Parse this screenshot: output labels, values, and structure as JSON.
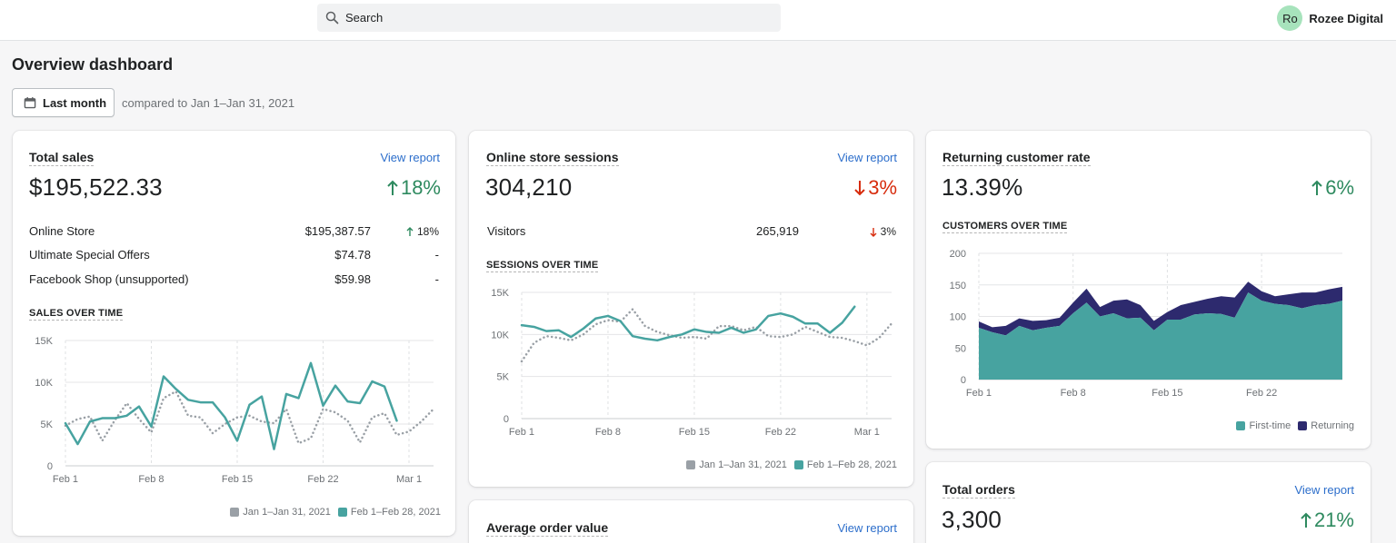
{
  "header": {
    "search_placeholder": "Search",
    "user_initials": "Ro",
    "user_name": "Rozee Digital"
  },
  "page": {
    "title": "Overview dashboard",
    "date_button": "Last month",
    "compare_text": "compared to Jan 1–Jan 31, 2021"
  },
  "colors": {
    "current": "#47a3a0",
    "previous": "#9aa0a6",
    "first_time": "#47a3a0",
    "returning": "#2d2a6e",
    "positive": "#2e8a5f",
    "negative": "#d72c0d"
  },
  "total_sales": {
    "title": "Total sales",
    "view_report": "View report",
    "value": "$195,522.33",
    "change": "18%",
    "direction": "up",
    "rows": [
      {
        "label": "Online Store",
        "value": "$195,387.57",
        "change": "18%",
        "direction": "up"
      },
      {
        "label": "Ultimate Special Offers",
        "value": "$74.78",
        "change": "-",
        "direction": "none"
      },
      {
        "label": "Facebook Shop (unsupported)",
        "value": "$59.98",
        "change": "-",
        "direction": "none"
      }
    ],
    "chart_label": "SALES OVER TIME",
    "legend": [
      "Jan 1–Jan 31, 2021",
      "Feb 1–Feb 28, 2021"
    ]
  },
  "sessions": {
    "title": "Online store sessions",
    "view_report": "View report",
    "value": "304,210",
    "change": "3%",
    "direction": "down",
    "rows": [
      {
        "label": "Visitors",
        "value": "265,919",
        "change": "3%",
        "direction": "down"
      }
    ],
    "chart_label": "SESSIONS OVER TIME",
    "legend": [
      "Jan 1–Jan 31, 2021",
      "Feb 1–Feb 28, 2021"
    ]
  },
  "returning": {
    "title": "Returning customer rate",
    "value": "13.39%",
    "change": "6%",
    "direction": "up",
    "chart_label": "CUSTOMERS OVER TIME",
    "legend": [
      "First-time",
      "Returning"
    ]
  },
  "aov": {
    "title": "Average order value",
    "view_report": "View report"
  },
  "orders": {
    "title": "Total orders",
    "view_report": "View report",
    "value": "3,300",
    "change": "21%",
    "direction": "up"
  },
  "chart_data": [
    {
      "id": "sales",
      "type": "line",
      "title": "SALES OVER TIME",
      "x_ticks": [
        "Feb 1",
        "Feb 8",
        "Feb 15",
        "Feb 22",
        "Mar 1"
      ],
      "y_ticks": [
        "0",
        "5K",
        "10K",
        "15K"
      ],
      "ylim": [
        0,
        15000
      ],
      "x_count": 31,
      "series": [
        {
          "name": "Jan 1–Jan 31, 2021",
          "style": "dotted",
          "values": [
            4800,
            5600,
            5900,
            3000,
            5400,
            7500,
            5600,
            4000,
            8100,
            8900,
            6000,
            5800,
            3900,
            5000,
            5800,
            6000,
            5300,
            5100,
            6800,
            2700,
            3300,
            6800,
            6400,
            5400,
            2800,
            5800,
            6300,
            3700,
            4100,
            5300,
            6800
          ]
        },
        {
          "name": "Feb 1–Feb 28, 2021",
          "style": "solid",
          "values": [
            5100,
            2600,
            5300,
            5700,
            5700,
            6000,
            7100,
            4700,
            10700,
            9200,
            7900,
            7600,
            7600,
            5800,
            3000,
            7300,
            8300,
            2000,
            8600,
            8100,
            12300,
            7200,
            9600,
            7700,
            7500,
            10100,
            9500,
            5400
          ]
        }
      ]
    },
    {
      "id": "sessions",
      "type": "line",
      "title": "SESSIONS OVER TIME",
      "x_ticks": [
        "Feb 1",
        "Feb 8",
        "Feb 15",
        "Feb 22",
        "Mar 1"
      ],
      "y_ticks": [
        "0",
        "5K",
        "10K",
        "15K"
      ],
      "ylim": [
        0,
        15000
      ],
      "x_count": 31,
      "series": [
        {
          "name": "Jan 1–Jan 31, 2021",
          "style": "dotted",
          "values": [
            6800,
            9000,
            9800,
            9600,
            9300,
            10000,
            11200,
            11700,
            11500,
            13000,
            11000,
            10300,
            9900,
            9600,
            9700,
            9500,
            11000,
            11000,
            10500,
            10900,
            9800,
            9700,
            10000,
            10900,
            10300,
            9700,
            9600,
            9200,
            8700,
            9600,
            11300
          ]
        },
        {
          "name": "Feb 1–Feb 28, 2021",
          "style": "solid",
          "values": [
            11100,
            10900,
            10400,
            10500,
            9700,
            10700,
            11900,
            12200,
            11600,
            9800,
            9500,
            9300,
            9700,
            10000,
            10600,
            10300,
            10200,
            10800,
            10200,
            10600,
            12200,
            12500,
            12100,
            11300,
            11300,
            10200,
            11400,
            13300
          ]
        }
      ]
    },
    {
      "id": "customers",
      "type": "area",
      "title": "CUSTOMERS OVER TIME",
      "x_ticks": [
        "Feb 1",
        "Feb 8",
        "Feb 15",
        "Feb 22"
      ],
      "y_ticks": [
        "0",
        "50",
        "100",
        "150",
        "200"
      ],
      "ylim": [
        0,
        200
      ],
      "x_count": 28,
      "series": [
        {
          "name": "First-time",
          "values": [
            82,
            75,
            70,
            85,
            78,
            82,
            85,
            105,
            122,
            100,
            105,
            97,
            98,
            78,
            95,
            95,
            103,
            105,
            104,
            98,
            138,
            125,
            120,
            118,
            113,
            118,
            120,
            125
          ]
        },
        {
          "name": "Returning",
          "values": [
            10,
            8,
            15,
            12,
            15,
            12,
            13,
            17,
            22,
            15,
            20,
            30,
            20,
            15,
            12,
            23,
            20,
            23,
            28,
            32,
            17,
            15,
            12,
            17,
            25,
            20,
            23,
            22
          ]
        }
      ]
    }
  ]
}
